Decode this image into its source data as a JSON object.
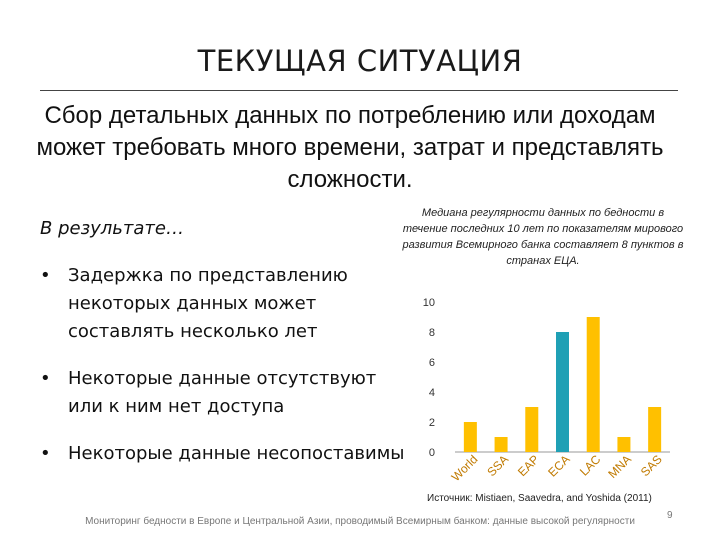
{
  "slide": {
    "title": "ТЕКУЩАЯ СИТУАЦИЯ",
    "subtitle": "Сбор детальных данных по потреблению или доходам может требовать много времени, затрат и представлять сложности.",
    "lead": "В результате…",
    "bullets": [
      "Задержка по представлению некоторых данных может составлять несколько лет",
      "Некоторые данные отсутствуют или к ним нет доступа",
      "Некоторые данные несопоставимы"
    ],
    "source": "Источник: Mistiaen, Saavedra, and Yoshida (2011)",
    "footer": "Мониторинг бедности в Европе и Центральной Азии, проводимый Всемирным банком: данные высокой регулярности",
    "page_number": "9"
  },
  "chart_data": {
    "type": "bar",
    "title": "Медиана регулярности данных по бедности в течение последних 10 лет по показателям мирового развития Всемирного банка составляет 8 пунктов в странах ЕЦА.",
    "categories": [
      "World",
      "SSA",
      "EAP",
      "ECA",
      "LAC",
      "MNA",
      "SAS"
    ],
    "values": [
      2,
      1,
      3,
      8,
      9,
      1,
      3
    ],
    "ylim": [
      0,
      10
    ],
    "yticks": [
      "0",
      "2",
      "4",
      "6",
      "8",
      "10"
    ],
    "grid": false,
    "colors": {
      "default": "#FFC000",
      "highlight": "#1FA0B5"
    },
    "highlight_index": 3
  }
}
